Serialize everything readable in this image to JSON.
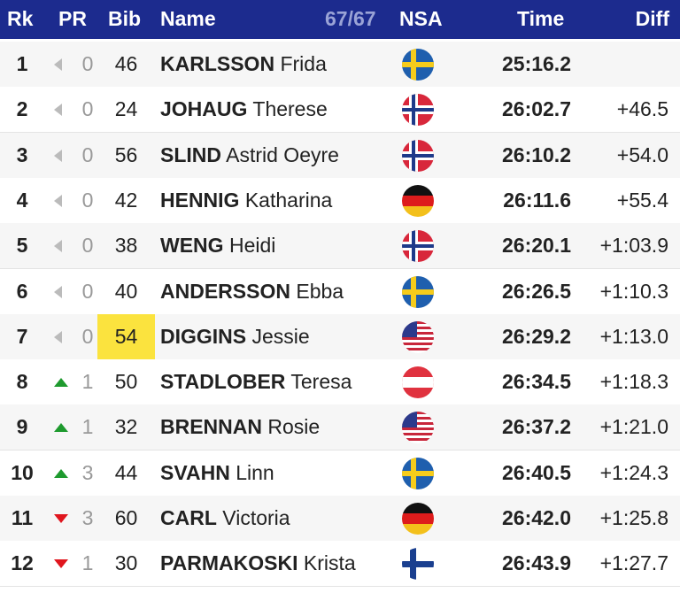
{
  "header": {
    "rk": "Rk",
    "pr": "PR",
    "bib": "Bib",
    "name": "Name",
    "count": "67/67",
    "nsa": "NSA",
    "time": "Time",
    "diff": "Diff"
  },
  "rows": [
    {
      "rk": "1",
      "pr": "0",
      "bib": "46",
      "last": "KARLSSON",
      "first": "Frida",
      "time": "25:16.2"
    },
    {
      "rk": "2",
      "pr": "0",
      "bib": "24",
      "last": "JOHAUG",
      "first": "Therese",
      "time": "26:02.7",
      "diff": "+46.5"
    },
    {
      "rk": "3",
      "pr": "0",
      "bib": "56",
      "last": "SLIND",
      "first": "Astrid Oeyre",
      "time": "26:10.2",
      "diff": "+54.0"
    },
    {
      "rk": "4",
      "pr": "0",
      "bib": "42",
      "last": "HENNIG",
      "first": "Katharina",
      "time": "26:11.6",
      "diff": "+55.4"
    },
    {
      "rk": "5",
      "pr": "0",
      "bib": "38",
      "last": "WENG",
      "first": "Heidi",
      "time": "26:20.1",
      "diff": "+1:03.9"
    },
    {
      "rk": "6",
      "pr": "0",
      "bib": "40",
      "last": "ANDERSSON",
      "first": "Ebba",
      "time": "26:26.5",
      "diff": "+1:10.3"
    },
    {
      "rk": "7",
      "pr": "0",
      "bib": "54",
      "last": "DIGGINS",
      "first": "Jessie",
      "time": "26:29.2",
      "diff": "+1:13.0"
    },
    {
      "rk": "8",
      "pr": "1",
      "bib": "50",
      "last": "STADLOBER",
      "first": "Teresa",
      "time": "26:34.5",
      "diff": "+1:18.3"
    },
    {
      "rk": "9",
      "pr": "1",
      "bib": "32",
      "last": "BRENNAN",
      "first": "Rosie",
      "time": "26:37.2",
      "diff": "+1:21.0"
    },
    {
      "rk": "10",
      "pr": "3",
      "bib": "44",
      "last": "SVAHN",
      "first": "Linn",
      "time": "26:40.5",
      "diff": "+1:24.3"
    },
    {
      "rk": "11",
      "pr": "3",
      "bib": "60",
      "last": "CARL",
      "first": "Victoria",
      "time": "26:42.0",
      "diff": "+1:25.8"
    },
    {
      "rk": "12",
      "pr": "1",
      "bib": "30",
      "last": "PARMAKOSKI",
      "first": "Krista",
      "time": "26:43.9",
      "diff": "+1:27.7"
    }
  ]
}
